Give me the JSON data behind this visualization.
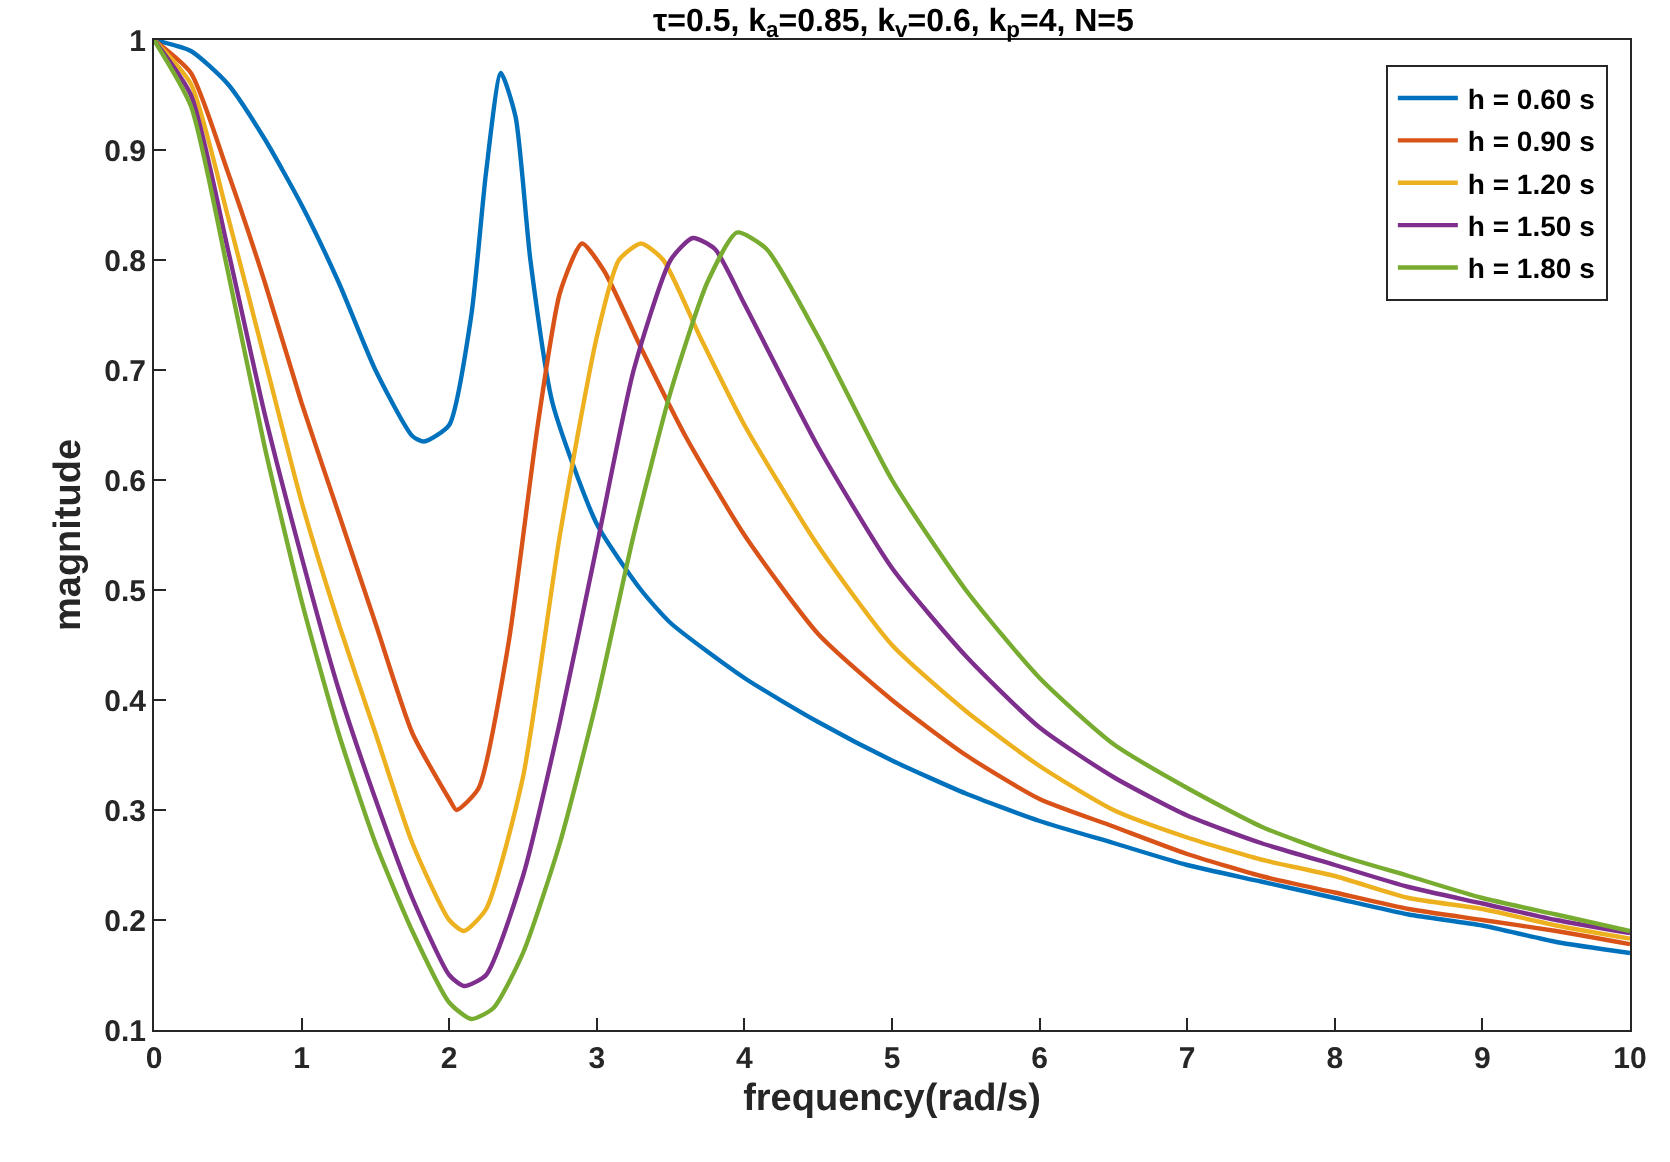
{
  "chart_data": {
    "type": "line",
    "title": "τ=0.5, k$_{a}$=0.85, k$_{v}$=0.6, k$_{p}$=4, N=5",
    "xlabel": "frequency(rad/s)",
    "ylabel": "magnitude",
    "xlim": [
      0,
      10
    ],
    "xticks": [
      0,
      1,
      2,
      3,
      4,
      5,
      6,
      7,
      8,
      9,
      10
    ],
    "ylim": [
      0.1,
      1
    ],
    "yticks": [
      0.1,
      0.2,
      0.3,
      0.4,
      0.5,
      0.6,
      0.7,
      0.8,
      0.9,
      1
    ],
    "legend": "top right",
    "marker": "none",
    "line_style": "solid",
    "series": [
      {
        "name": "h = 0.60 s",
        "color": "#0072bd",
        "x": [
          0,
          0.25,
          0.5,
          0.75,
          1,
          1.25,
          1.5,
          1.75,
          1.83,
          2,
          2.15,
          2.25,
          2.35,
          2.45,
          2.55,
          2.7,
          3,
          3.3,
          3.5,
          4,
          4.5,
          5,
          5.5,
          6,
          6.5,
          7,
          7.5,
          8,
          8.5,
          9,
          9.5,
          10
        ],
        "values": [
          1,
          0.99,
          0.96,
          0.91,
          0.85,
          0.78,
          0.7,
          0.64,
          0.635,
          0.65,
          0.75,
          0.88,
          0.97,
          0.93,
          0.8,
          0.67,
          0.56,
          0.5,
          0.47,
          0.42,
          0.38,
          0.345,
          0.315,
          0.29,
          0.27,
          0.25,
          0.235,
          0.22,
          0.205,
          0.195,
          0.18,
          0.17
        ]
      },
      {
        "name": "h = 0.90 s",
        "color": "#d95319",
        "x": [
          0,
          0.25,
          0.5,
          0.75,
          1,
          1.25,
          1.5,
          1.75,
          2,
          2.05,
          2.2,
          2.4,
          2.6,
          2.75,
          2.9,
          3.05,
          3.3,
          3.6,
          4,
          4.5,
          5,
          5.5,
          6,
          6.5,
          7,
          7.5,
          8,
          8.5,
          9,
          9.5,
          10
        ],
        "values": [
          1,
          0.97,
          0.88,
          0.78,
          0.67,
          0.57,
          0.47,
          0.37,
          0.31,
          0.3,
          0.32,
          0.45,
          0.65,
          0.77,
          0.815,
          0.79,
          0.72,
          0.64,
          0.55,
          0.46,
          0.4,
          0.35,
          0.31,
          0.285,
          0.26,
          0.24,
          0.225,
          0.21,
          0.2,
          0.19,
          0.178
        ]
      },
      {
        "name": "h = 1.20 s",
        "color": "#edb120",
        "x": [
          0,
          0.25,
          0.5,
          0.75,
          1,
          1.25,
          1.5,
          1.75,
          2,
          2.1,
          2.25,
          2.5,
          2.75,
          3,
          3.15,
          3.3,
          3.45,
          3.7,
          4,
          4.5,
          5,
          5.5,
          6,
          6.5,
          7,
          7.5,
          8,
          8.5,
          9,
          9.5,
          10
        ],
        "values": [
          1,
          0.96,
          0.84,
          0.71,
          0.58,
          0.47,
          0.37,
          0.27,
          0.2,
          0.19,
          0.21,
          0.33,
          0.55,
          0.73,
          0.8,
          0.815,
          0.8,
          0.73,
          0.65,
          0.54,
          0.45,
          0.39,
          0.34,
          0.3,
          0.275,
          0.255,
          0.24,
          0.22,
          0.21,
          0.195,
          0.183
        ]
      },
      {
        "name": "h = 1.50 s",
        "color": "#7e2f8e",
        "x": [
          0,
          0.25,
          0.5,
          0.75,
          1,
          1.25,
          1.5,
          1.75,
          2,
          2.1,
          2.25,
          2.5,
          2.75,
          3,
          3.25,
          3.5,
          3.65,
          3.8,
          4,
          4.5,
          5,
          5.5,
          6,
          6.5,
          7,
          7.5,
          8,
          8.5,
          9,
          9.5,
          10
        ],
        "values": [
          1,
          0.95,
          0.81,
          0.66,
          0.53,
          0.41,
          0.31,
          0.22,
          0.15,
          0.14,
          0.15,
          0.24,
          0.38,
          0.54,
          0.7,
          0.8,
          0.82,
          0.81,
          0.76,
          0.63,
          0.52,
          0.44,
          0.375,
          0.33,
          0.295,
          0.27,
          0.25,
          0.23,
          0.215,
          0.2,
          0.188
        ]
      },
      {
        "name": "h = 1.80 s",
        "color": "#77ac30",
        "x": [
          0,
          0.25,
          0.5,
          0.75,
          1,
          1.25,
          1.5,
          1.75,
          2,
          2.15,
          2.3,
          2.5,
          2.75,
          3,
          3.25,
          3.5,
          3.75,
          3.95,
          4.15,
          4.5,
          5,
          5.5,
          6,
          6.5,
          7,
          7.5,
          8,
          8.5,
          9,
          9.5,
          10
        ],
        "values": [
          1,
          0.94,
          0.79,
          0.63,
          0.49,
          0.37,
          0.27,
          0.19,
          0.125,
          0.11,
          0.12,
          0.17,
          0.27,
          0.4,
          0.55,
          0.68,
          0.78,
          0.825,
          0.81,
          0.73,
          0.6,
          0.5,
          0.42,
          0.36,
          0.32,
          0.285,
          0.26,
          0.24,
          0.22,
          0.205,
          0.19
        ]
      }
    ]
  }
}
